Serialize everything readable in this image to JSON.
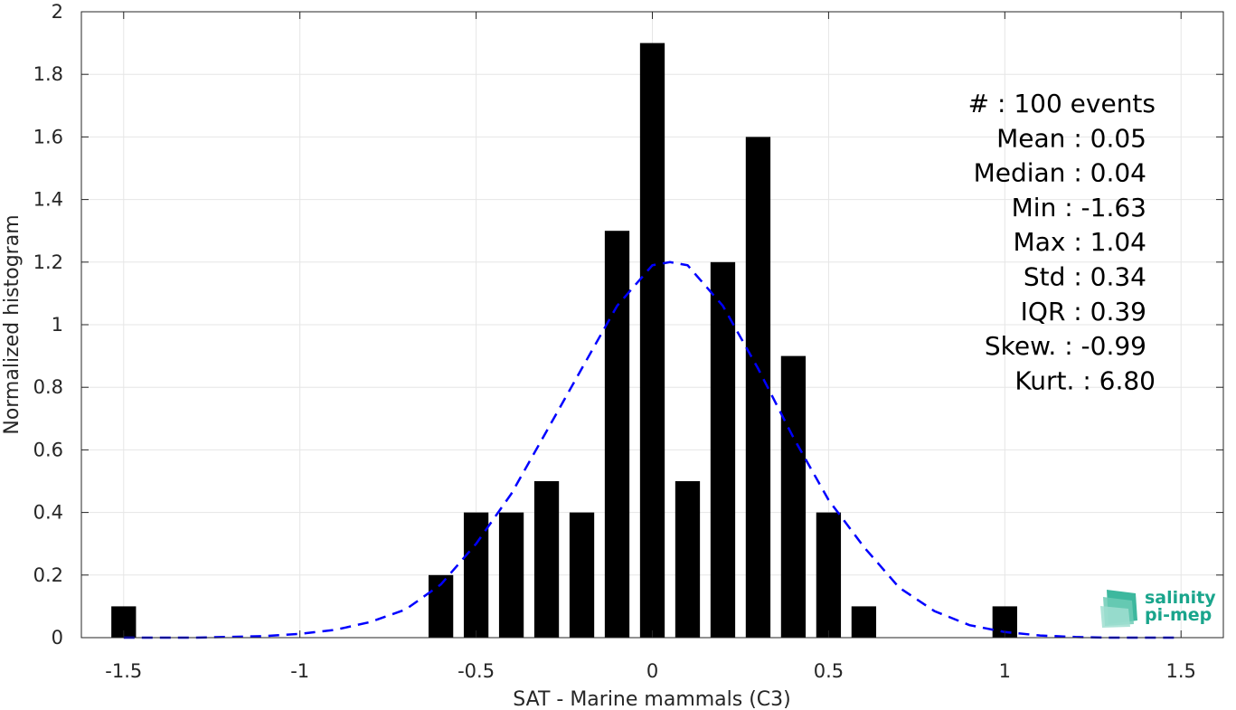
{
  "chart_data": {
    "type": "bar",
    "xlabel": "SAT - Marine mammals (C3)",
    "ylabel": "Normalized histogram",
    "xlim": [
      -1.62,
      1.62
    ],
    "ylim": [
      0,
      2
    ],
    "grid": true,
    "x_ticks": [
      -1.5,
      -1,
      -0.5,
      0,
      0.5,
      1,
      1.5
    ],
    "x_tick_labels": [
      "-1.5",
      "-1",
      "-0.5",
      "0",
      "0.5",
      "1",
      "1.5"
    ],
    "y_ticks": [
      0,
      0.2,
      0.4,
      0.6,
      0.8,
      1,
      1.2,
      1.4,
      1.6,
      1.8,
      2
    ],
    "y_tick_labels": [
      "0",
      "0.2",
      "0.4",
      "0.6",
      "0.8",
      "1",
      "1.2",
      "1.4",
      "1.6",
      "1.8",
      "2"
    ],
    "bin_width": 0.1,
    "bars": [
      {
        "x": -1.5,
        "value": 0.1
      },
      {
        "x": -0.6,
        "value": 0.2
      },
      {
        "x": -0.5,
        "value": 0.4
      },
      {
        "x": -0.4,
        "value": 0.4
      },
      {
        "x": -0.3,
        "value": 0.5
      },
      {
        "x": -0.2,
        "value": 0.4
      },
      {
        "x": -0.1,
        "value": 1.3
      },
      {
        "x": 0.0,
        "value": 1.9
      },
      {
        "x": 0.1,
        "value": 0.5
      },
      {
        "x": 0.2,
        "value": 1.2
      },
      {
        "x": 0.3,
        "value": 1.6
      },
      {
        "x": 0.4,
        "value": 0.9
      },
      {
        "x": 0.5,
        "value": 0.4
      },
      {
        "x": 0.6,
        "value": 0.1
      },
      {
        "x": 1.0,
        "value": 0.1
      }
    ],
    "fit_curve": {
      "style": "dashed",
      "color": "#0000ff",
      "points": [
        [
          -1.5,
          0.0
        ],
        [
          -1.3,
          0.0
        ],
        [
          -1.1,
          0.005
        ],
        [
          -1.0,
          0.012
        ],
        [
          -0.9,
          0.025
        ],
        [
          -0.8,
          0.05
        ],
        [
          -0.7,
          0.09
        ],
        [
          -0.6,
          0.17
        ],
        [
          -0.5,
          0.3
        ],
        [
          -0.4,
          0.46
        ],
        [
          -0.3,
          0.66
        ],
        [
          -0.2,
          0.86
        ],
        [
          -0.1,
          1.06
        ],
        [
          0.0,
          1.19
        ],
        [
          0.05,
          1.2
        ],
        [
          0.1,
          1.19
        ],
        [
          0.2,
          1.06
        ],
        [
          0.3,
          0.86
        ],
        [
          0.4,
          0.64
        ],
        [
          0.5,
          0.44
        ],
        [
          0.6,
          0.29
        ],
        [
          0.7,
          0.16
        ],
        [
          0.8,
          0.085
        ],
        [
          0.9,
          0.04
        ],
        [
          1.0,
          0.018
        ],
        [
          1.1,
          0.007
        ],
        [
          1.2,
          0.002
        ],
        [
          1.3,
          0.0
        ],
        [
          1.5,
          0.0
        ]
      ]
    },
    "bar_color": "#000000"
  },
  "stats": [
    {
      "label": "#  : 100 events"
    },
    {
      "label": "Mean : 0.05"
    },
    {
      "label": "Median : 0.04"
    },
    {
      "label": "Min : -1.63"
    },
    {
      "label": "Max : 1.04"
    },
    {
      "label": "Std : 0.34"
    },
    {
      "label": "IQR : 0.39"
    },
    {
      "label": "Skew. : -0.99"
    },
    {
      "label": "Kurt. : 6.80"
    }
  ],
  "logo": {
    "line1": "salinity",
    "line2": "pi-mep",
    "icon": "salinity-waves-icon",
    "color": "#1aa58c"
  }
}
